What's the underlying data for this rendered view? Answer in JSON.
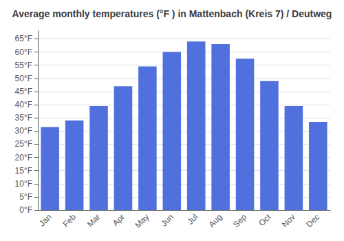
{
  "chart_data": {
    "type": "bar",
    "title": "Average monthly temperatures (°F ) in Mattenbach (Kreis 7) / Deutweg",
    "categories": [
      "Jan",
      "Feb",
      "Mar",
      "Apr",
      "May",
      "Jun",
      "Jul",
      "Aug",
      "Sep",
      "Oct",
      "Nov",
      "Dec"
    ],
    "values": [
      31.5,
      34.0,
      39.5,
      47.0,
      54.5,
      60.0,
      64.0,
      63.0,
      57.5,
      49.0,
      39.5,
      33.5
    ],
    "ylim": [
      0,
      68
    ],
    "yticks": [
      {
        "value": 0,
        "label": "0°F"
      },
      {
        "value": 5,
        "label": "5°F"
      },
      {
        "value": 10,
        "label": "10°F"
      },
      {
        "value": 15,
        "label": "15°F"
      },
      {
        "value": 20,
        "label": "20°F"
      },
      {
        "value": 25,
        "label": "25°F"
      },
      {
        "value": 30,
        "label": "30°F"
      },
      {
        "value": 35,
        "label": "35°F"
      },
      {
        "value": 40,
        "label": "40°F"
      },
      {
        "value": 45,
        "label": "45°F"
      },
      {
        "value": 50,
        "label": "50°F"
      },
      {
        "value": 55,
        "label": "55°F"
      },
      {
        "value": 60,
        "label": "60°F"
      },
      {
        "value": 65,
        "label": "65°F"
      }
    ],
    "grid": true
  }
}
